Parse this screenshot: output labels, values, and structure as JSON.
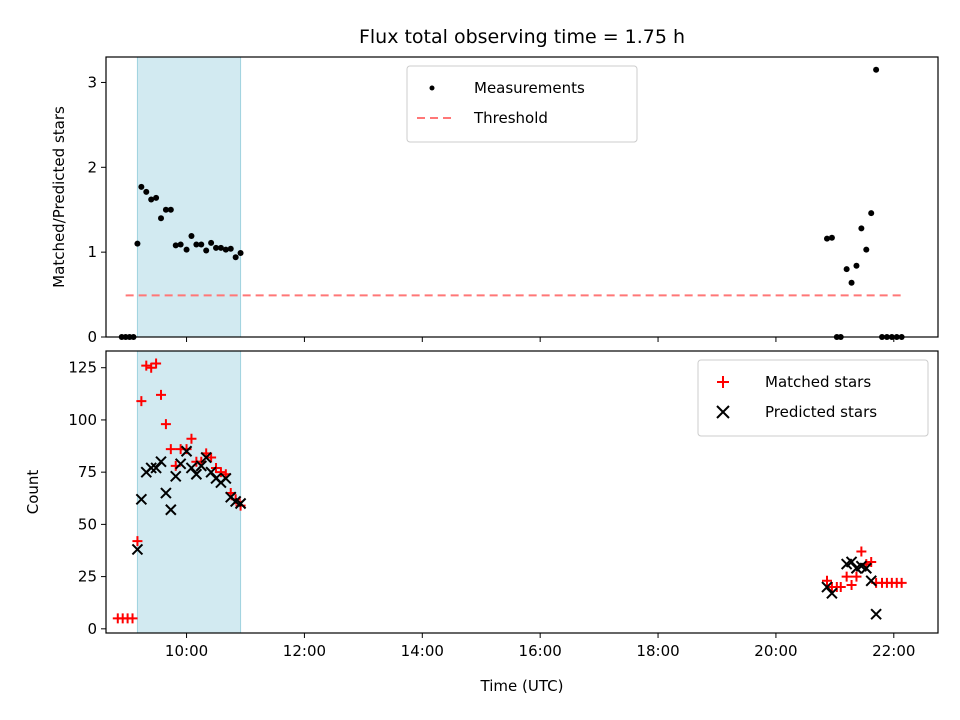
{
  "title": "Flux total observing time = 1.75 h",
  "chart_data": [
    {
      "type": "scatter",
      "ylabel": "Matched/Predicted stars",
      "ylim": [
        0,
        3.3
      ],
      "yticks": [
        0,
        1,
        2,
        3
      ],
      "xlim": [
        "08:38",
        "22:45"
      ],
      "xticks": [
        "10:00",
        "12:00",
        "14:00",
        "16:00",
        "18:00",
        "20:00",
        "22:00"
      ],
      "xtick_labels_visible": false,
      "shaded_interval": [
        "09:10",
        "10:55"
      ],
      "shade_color": "#add8e6",
      "legend": {
        "location": "upper-center",
        "entries": [
          "Measurements",
          "Threshold"
        ]
      },
      "series": [
        {
          "name": "Measurements",
          "marker": "dot",
          "color": "#000000",
          "points": [
            [
              "08:54",
              0
            ],
            [
              "08:58",
              0
            ],
            [
              "09:02",
              0
            ],
            [
              "09:06",
              0
            ],
            [
              "09:10",
              1.1
            ],
            [
              "09:14",
              1.77
            ],
            [
              "09:19",
              1.71
            ],
            [
              "09:24",
              1.62
            ],
            [
              "09:29",
              1.64
            ],
            [
              "09:34",
              1.4
            ],
            [
              "09:39",
              1.5
            ],
            [
              "09:44",
              1.5
            ],
            [
              "09:49",
              1.08
            ],
            [
              "09:54",
              1.09
            ],
            [
              "10:00",
              1.03
            ],
            [
              "10:05",
              1.19
            ],
            [
              "10:10",
              1.09
            ],
            [
              "10:15",
              1.09
            ],
            [
              "10:20",
              1.02
            ],
            [
              "10:25",
              1.11
            ],
            [
              "10:30",
              1.05
            ],
            [
              "10:35",
              1.05
            ],
            [
              "10:40",
              1.03
            ],
            [
              "10:45",
              1.04
            ],
            [
              "10:50",
              0.94
            ],
            [
              "10:55",
              0.99
            ],
            [
              "20:52",
              1.16
            ],
            [
              "20:57",
              1.17
            ],
            [
              "21:02",
              0
            ],
            [
              "21:06",
              0
            ],
            [
              "21:12",
              0.8
            ],
            [
              "21:17",
              0.64
            ],
            [
              "21:22",
              0.84
            ],
            [
              "21:27",
              1.28
            ],
            [
              "21:32",
              1.03
            ],
            [
              "21:37",
              1.46
            ],
            [
              "21:42",
              3.15
            ],
            [
              "21:48",
              0
            ],
            [
              "21:53",
              0
            ],
            [
              "21:58",
              0
            ],
            [
              "22:03",
              0
            ],
            [
              "22:08",
              0
            ]
          ]
        },
        {
          "name": "Threshold",
          "line": "dashed",
          "color": "#ff7777",
          "value": 0.49,
          "x_range": [
            "08:58",
            "22:08"
          ]
        }
      ]
    },
    {
      "type": "scatter",
      "xlabel": "Time (UTC)",
      "ylabel": "Count",
      "ylim": [
        -2,
        133
      ],
      "yticks": [
        0,
        25,
        50,
        75,
        100,
        125
      ],
      "xlim": [
        "08:38",
        "22:45"
      ],
      "xticks": [
        "10:00",
        "12:00",
        "14:00",
        "16:00",
        "18:00",
        "20:00",
        "22:00"
      ],
      "shaded_interval": [
        "09:10",
        "10:55"
      ],
      "shade_color": "#add8e6",
      "legend": {
        "location": "upper-right",
        "entries": [
          "Matched stars",
          "Predicted stars"
        ]
      },
      "series": [
        {
          "name": "Matched stars",
          "marker": "plus",
          "color": "#ff0000",
          "points": [
            [
              "08:50",
              5
            ],
            [
              "08:55",
              5
            ],
            [
              "09:00",
              5
            ],
            [
              "09:05",
              5
            ],
            [
              "09:10",
              42
            ],
            [
              "09:14",
              109
            ],
            [
              "09:19",
              126
            ],
            [
              "09:24",
              125
            ],
            [
              "09:29",
              127
            ],
            [
              "09:34",
              112
            ],
            [
              "09:39",
              98
            ],
            [
              "09:44",
              86
            ],
            [
              "09:49",
              78
            ],
            [
              "09:54",
              86
            ],
            [
              "10:00",
              86
            ],
            [
              "10:05",
              91
            ],
            [
              "10:10",
              80
            ],
            [
              "10:15",
              80
            ],
            [
              "10:20",
              84
            ],
            [
              "10:25",
              82
            ],
            [
              "10:30",
              77
            ],
            [
              "10:35",
              75
            ],
            [
              "10:40",
              74
            ],
            [
              "10:45",
              65
            ],
            [
              "10:50",
              62
            ],
            [
              "10:55",
              59
            ],
            [
              "20:52",
              23
            ],
            [
              "20:57",
              20
            ],
            [
              "21:02",
              20
            ],
            [
              "21:06",
              20
            ],
            [
              "21:12",
              25
            ],
            [
              "21:17",
              21
            ],
            [
              "21:22",
              25
            ],
            [
              "21:27",
              37
            ],
            [
              "21:32",
              31
            ],
            [
              "21:37",
              32
            ],
            [
              "21:42",
              22
            ],
            [
              "21:48",
              22
            ],
            [
              "21:53",
              22
            ],
            [
              "21:58",
              22
            ],
            [
              "22:03",
              22
            ],
            [
              "22:08",
              22
            ]
          ]
        },
        {
          "name": "Predicted stars",
          "marker": "x",
          "color": "#000000",
          "points": [
            [
              "09:10",
              38
            ],
            [
              "09:14",
              62
            ],
            [
              "09:19",
              75
            ],
            [
              "09:24",
              77
            ],
            [
              "09:29",
              77
            ],
            [
              "09:34",
              80
            ],
            [
              "09:39",
              65
            ],
            [
              "09:44",
              57
            ],
            [
              "09:49",
              73
            ],
            [
              "09:54",
              79
            ],
            [
              "10:00",
              85
            ],
            [
              "10:05",
              77
            ],
            [
              "10:10",
              74
            ],
            [
              "10:15",
              78
            ],
            [
              "10:20",
              82
            ],
            [
              "10:25",
              75
            ],
            [
              "10:30",
              72
            ],
            [
              "10:35",
              70
            ],
            [
              "10:40",
              72
            ],
            [
              "10:45",
              63
            ],
            [
              "10:50",
              61
            ],
            [
              "10:55",
              60
            ],
            [
              "20:52",
              20
            ],
            [
              "20:57",
              17
            ],
            [
              "21:12",
              31
            ],
            [
              "21:17",
              32
            ],
            [
              "21:22",
              29
            ],
            [
              "21:27",
              30
            ],
            [
              "21:32",
              29
            ],
            [
              "21:37",
              23
            ],
            [
              "21:42",
              7
            ]
          ]
        }
      ]
    }
  ]
}
